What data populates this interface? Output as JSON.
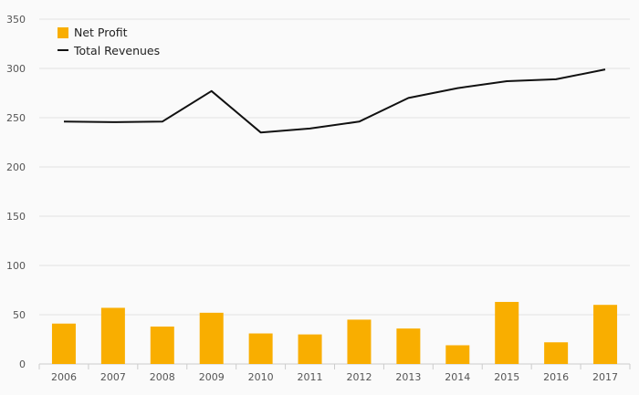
{
  "chart_data": {
    "type": "bar",
    "categories": [
      "2006",
      "2007",
      "2008",
      "2009",
      "2010",
      "2011",
      "2012",
      "2013",
      "2014",
      "2015",
      "2016",
      "2017"
    ],
    "series": [
      {
        "name": "Net Profit",
        "type": "bar",
        "color": "#f9ae00",
        "values": [
          41,
          57,
          38,
          52,
          31,
          30,
          45,
          36,
          19,
          63,
          22,
          60
        ]
      },
      {
        "name": "Total Revenues",
        "type": "line",
        "color": "#111111",
        "values": [
          246,
          245.5,
          246,
          277,
          235,
          239,
          246,
          270,
          280,
          287,
          289,
          299
        ]
      }
    ],
    "ylim": [
      0,
      350
    ],
    "yticks": [
      0,
      50,
      100,
      150,
      200,
      250,
      300,
      350
    ],
    "grid": true,
    "legend": "top-left"
  }
}
